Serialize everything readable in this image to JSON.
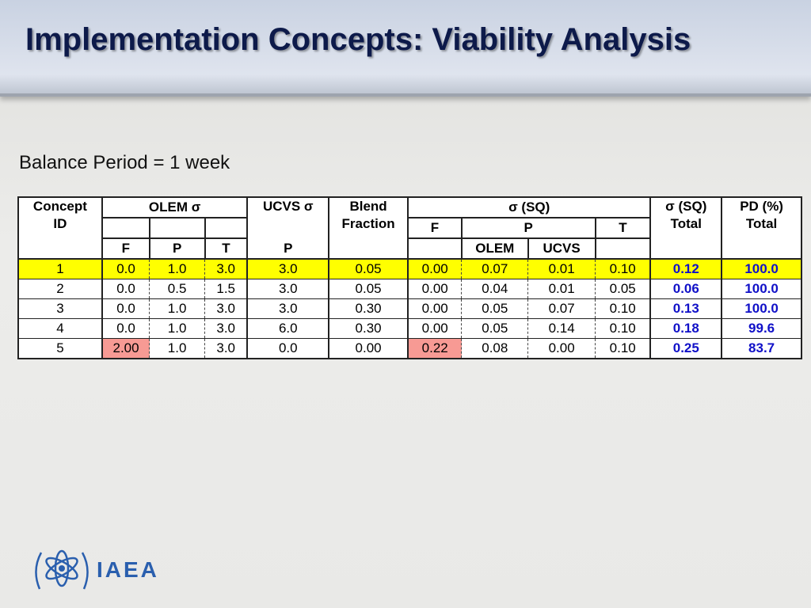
{
  "title": "Implementation Concepts: Viability Analysis",
  "subtitle": "Balance Period = 1 week",
  "table": {
    "header": {
      "concept_id": [
        "Concept",
        "ID"
      ],
      "olem_sigma": "OLEM σ",
      "ucvs_sigma": "UCVS σ",
      "blend_fraction": [
        "Blend",
        "Fraction"
      ],
      "sq": "σ (SQ)",
      "sq_total": [
        "σ (SQ)",
        "Total"
      ],
      "pd_total": [
        "PD (%)",
        "Total"
      ],
      "olem_sub": [
        "F",
        "P",
        "T"
      ],
      "ucvs_sub": "P",
      "sq_sub": [
        "F",
        "P",
        "T"
      ],
      "sq_p_sub": [
        "OLEM",
        "UCVS"
      ]
    },
    "rows": [
      [
        "1",
        "0.0",
        "1.0",
        "3.0",
        "3.0",
        "0.05",
        "0.00",
        "0.07",
        "0.01",
        "0.10",
        "0.12",
        "100.0"
      ],
      [
        "2",
        "0.0",
        "0.5",
        "1.5",
        "3.0",
        "0.05",
        "0.00",
        "0.04",
        "0.01",
        "0.05",
        "0.06",
        "100.0"
      ],
      [
        "3",
        "0.0",
        "1.0",
        "3.0",
        "3.0",
        "0.30",
        "0.00",
        "0.05",
        "0.07",
        "0.10",
        "0.13",
        "100.0"
      ],
      [
        "4",
        "0.0",
        "1.0",
        "3.0",
        "6.0",
        "0.30",
        "0.00",
        "0.05",
        "0.14",
        "0.10",
        "0.18",
        "99.6"
      ],
      [
        "5",
        "2.00",
        "1.0",
        "3.0",
        "0.0",
        "0.00",
        "0.22",
        "0.08",
        "0.00",
        "0.10",
        "0.25",
        "83.7"
      ]
    ]
  },
  "logo": "IAEA"
}
